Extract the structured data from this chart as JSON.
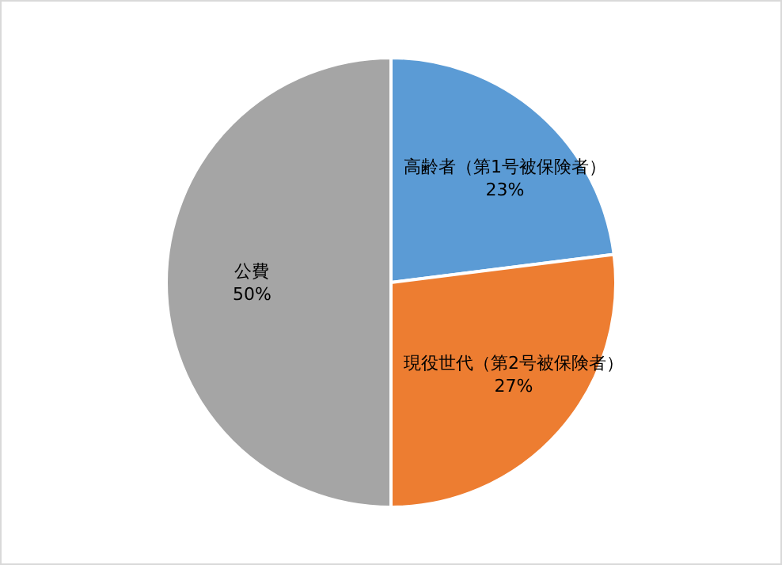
{
  "chart_data": {
    "type": "pie",
    "categories": [
      "高齢者（第1号被保険者）",
      "現役世代（第2号被保険者）",
      "公費"
    ],
    "values": [
      23,
      27,
      50
    ],
    "colors": [
      "#5b9bd5",
      "#ed7d31",
      "#a5a5a5"
    ],
    "value_labels": [
      "23%",
      "27%",
      "50%"
    ],
    "legend": false
  }
}
